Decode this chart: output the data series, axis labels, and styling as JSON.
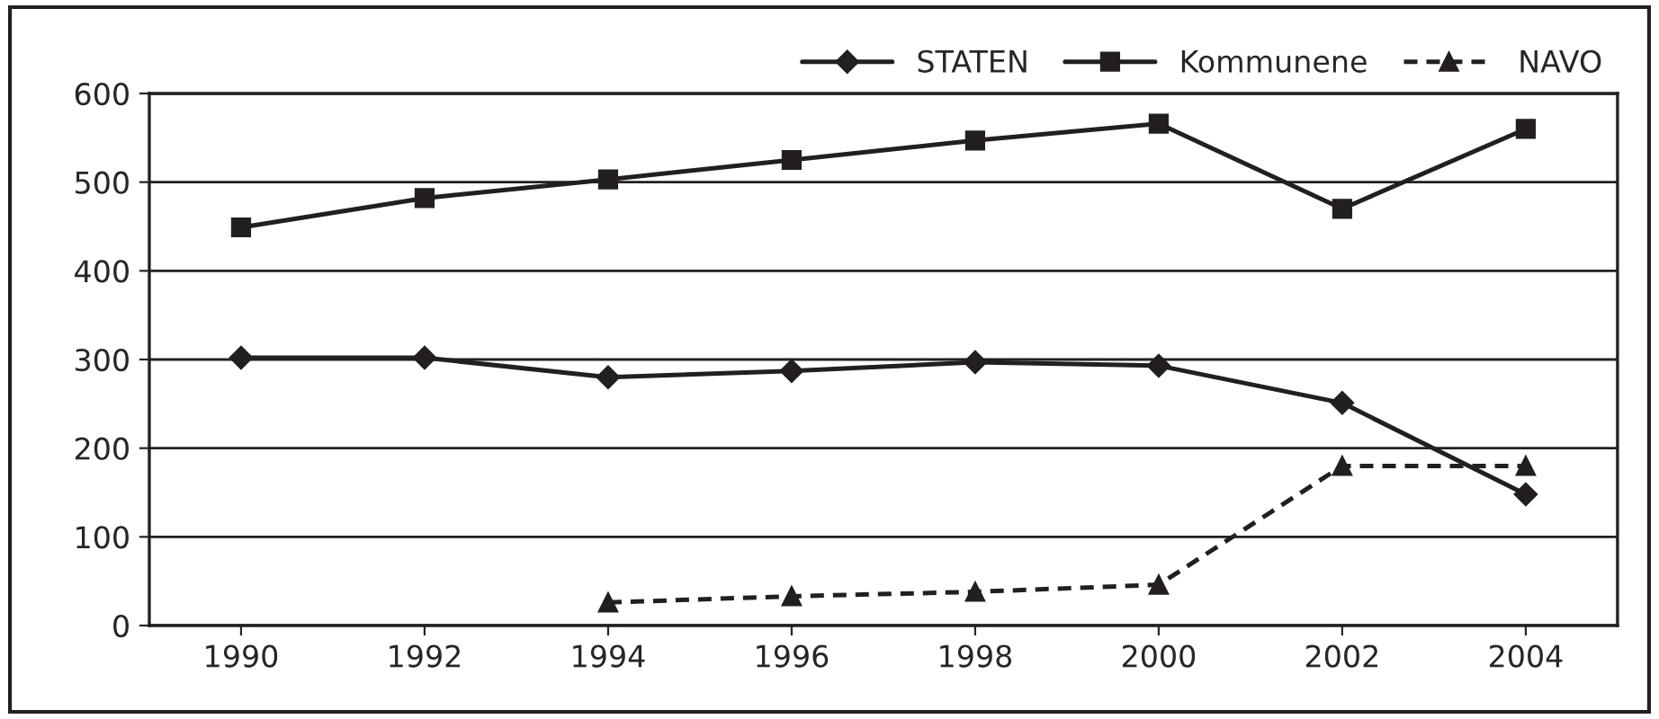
{
  "chart_data": {
    "type": "line",
    "categories": [
      "1990",
      "1992",
      "1994",
      "1996",
      "1998",
      "2000",
      "2002",
      "2004"
    ],
    "series": [
      {
        "name": "STATEN",
        "color": "#231f20",
        "marker": "diamond",
        "line_style": "solid",
        "values": [
          302,
          302,
          280,
          287,
          297,
          293,
          251,
          148
        ]
      },
      {
        "name": "Kommunene",
        "color": "#231f20",
        "marker": "square",
        "line_style": "solid",
        "values": [
          449,
          482,
          503,
          525,
          547,
          566,
          470,
          560
        ]
      },
      {
        "name": "NAVO",
        "color": "#231f20",
        "marker": "triangle",
        "line_style": "dashed",
        "values": [
          null,
          null,
          26,
          33,
          38,
          46,
          180,
          180
        ]
      }
    ],
    "ylim": [
      0,
      600
    ],
    "yticks": [
      0,
      100,
      200,
      300,
      400,
      500,
      600
    ],
    "grid": "y",
    "legend": "top right"
  }
}
